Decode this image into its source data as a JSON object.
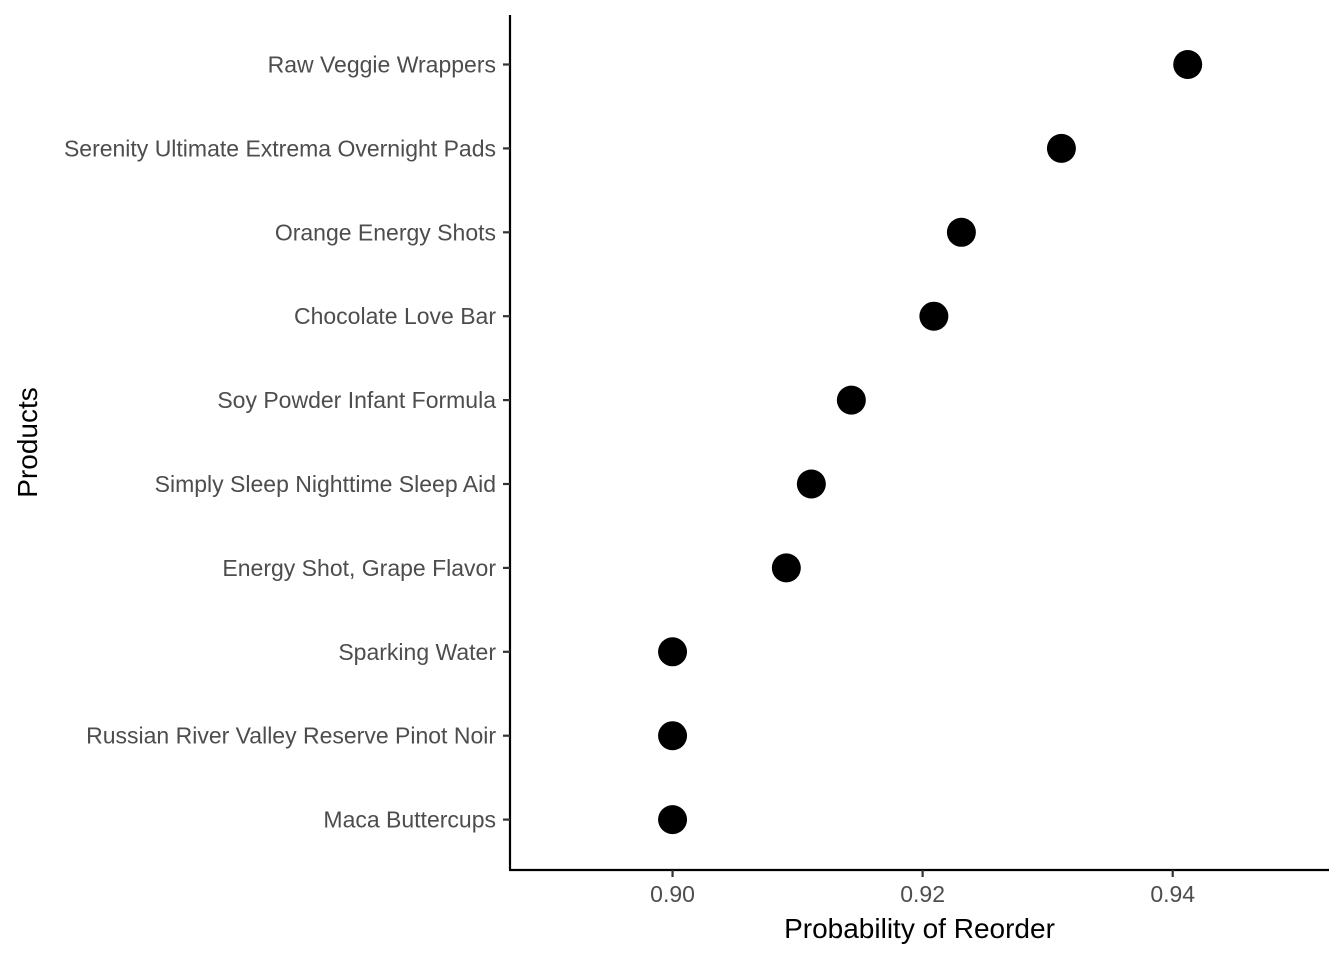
{
  "chart_data": {
    "type": "scatter",
    "title": "",
    "xlabel": "Probability of Reorder",
    "ylabel": "Products",
    "xlim": [
      0.887,
      0.9525
    ],
    "xticks": [
      {
        "value": 0.9,
        "label": "0.90"
      },
      {
        "value": 0.92,
        "label": "0.92"
      },
      {
        "value": 0.94,
        "label": "0.94"
      }
    ],
    "grid": false,
    "legend": "none",
    "point_color": "#000000",
    "categories": [
      "Raw Veggie Wrappers",
      "Serenity Ultimate Extrema Overnight Pads",
      "Orange Energy Shots",
      "Chocolate Love Bar",
      "Soy Powder Infant Formula",
      "Simply Sleep Nighttime Sleep Aid",
      "Energy Shot, Grape Flavor",
      "Sparking Water",
      "Russian River Valley Reserve Pinot Noir",
      "Maca Buttercups"
    ],
    "values": [
      0.9412,
      0.9311,
      0.9231,
      0.9209,
      0.9143,
      0.9111,
      0.9091,
      0.9,
      0.9,
      0.9
    ]
  }
}
